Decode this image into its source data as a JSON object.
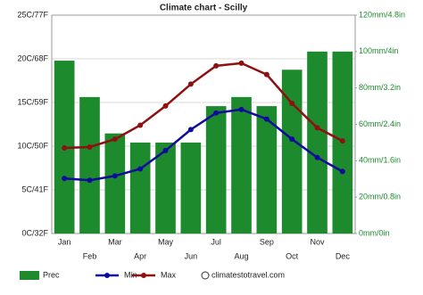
{
  "chart_data": {
    "type": "bar",
    "title": "Climate chart - Scilly",
    "categories": [
      "Jan",
      "Feb",
      "Mar",
      "Apr",
      "May",
      "Jun",
      "Jul",
      "Aug",
      "Sep",
      "Oct",
      "Nov",
      "Dec"
    ],
    "series": [
      {
        "name": "Prec",
        "type": "bar",
        "axis": "y2",
        "color": "#1e8a2e",
        "values": [
          95,
          75,
          55,
          50,
          50,
          50,
          70,
          75,
          70,
          90,
          100,
          100
        ]
      },
      {
        "name": "Min",
        "type": "line",
        "color": "#0c0c9c",
        "values": [
          6.3,
          6.1,
          6.6,
          7.4,
          9.5,
          11.9,
          13.8,
          14.2,
          13.1,
          10.8,
          8.7,
          7.1
        ]
      },
      {
        "name": "Max",
        "type": "line",
        "color": "#8e1010",
        "values": [
          9.8,
          9.9,
          10.8,
          12.4,
          14.6,
          17.1,
          19.2,
          19.5,
          18.2,
          14.9,
          12.1,
          10.6
        ]
      }
    ],
    "ylim": [
      0,
      25
    ],
    "yticks": [
      {
        "value": 0,
        "label": "0C/32F"
      },
      {
        "value": 5,
        "label": "5C/41F"
      },
      {
        "value": 10,
        "label": "10C/50F"
      },
      {
        "value": 15,
        "label": "15C/59F"
      },
      {
        "value": 20,
        "label": "20C/68F"
      },
      {
        "value": 25,
        "label": "25C/77F"
      }
    ],
    "y2lim": [
      0,
      120
    ],
    "y2ticks": [
      {
        "value": 0,
        "label": "0mm/0in"
      },
      {
        "value": 20,
        "label": "20mm/0.8in"
      },
      {
        "value": 40,
        "label": "40mm/1.6in"
      },
      {
        "value": 60,
        "label": "60mm/2.4in"
      },
      {
        "value": 80,
        "label": "80mm/3.2in"
      },
      {
        "value": 100,
        "label": "100mm/4in"
      },
      {
        "value": 120,
        "label": "120mm/4.8in"
      }
    ],
    "grid": true,
    "watermark": "climatestotravel.com"
  }
}
